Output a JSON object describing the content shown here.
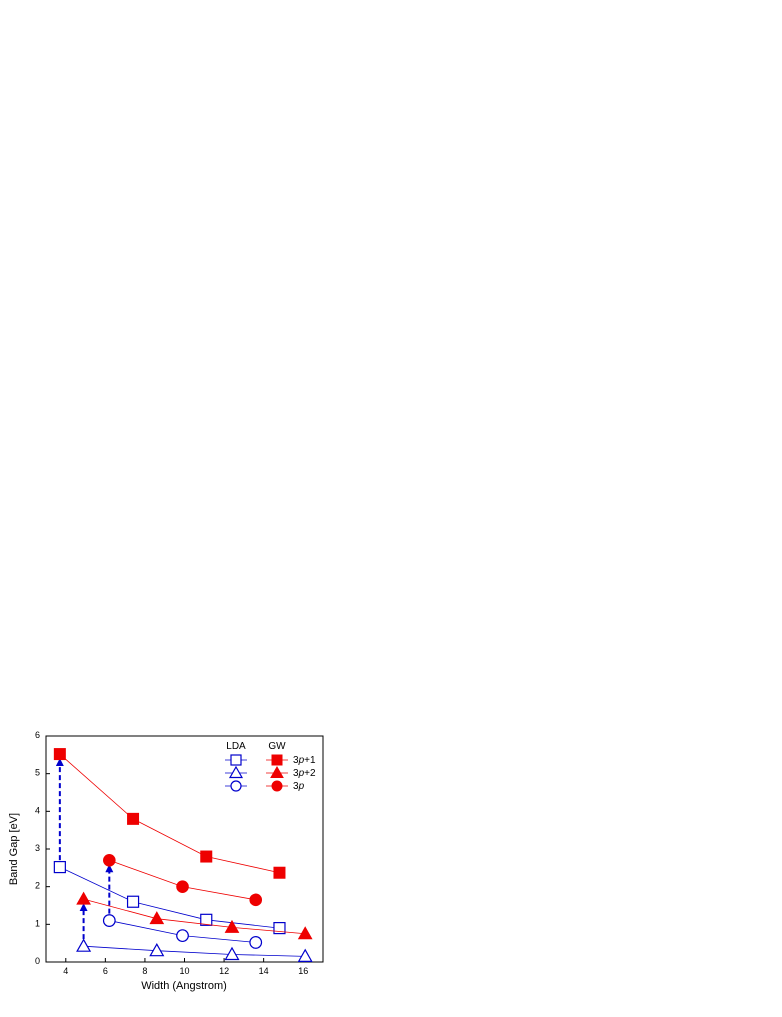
{
  "chart_data": {
    "type": "line",
    "x_label": "Width (Angstrom)",
    "y_label": "Band Gap [eV]",
    "xlim": [
      3,
      17
    ],
    "ylim": [
      0,
      6
    ],
    "xticks": [
      4,
      6,
      8,
      10,
      12,
      14,
      16
    ],
    "yticks": [
      0,
      1,
      2,
      3,
      4,
      5,
      6
    ],
    "legend_rows": [
      "3p+1",
      "3p+2",
      "3p"
    ],
    "groups": [
      {
        "name": "LDA",
        "color": "#0000cc",
        "filled": false,
        "series": [
          {
            "marker": "square",
            "x": [
              3.7,
              7.4,
              11.1,
              14.8
            ],
            "values": [
              2.52,
              1.6,
              1.12,
              0.9
            ]
          },
          {
            "marker": "triangle",
            "x": [
              4.9,
              8.6,
              12.4,
              16.1
            ],
            "values": [
              0.42,
              0.3,
              0.2,
              0.15
            ]
          },
          {
            "marker": "circle",
            "x": [
              6.2,
              9.9,
              13.6
            ],
            "values": [
              1.1,
              0.7,
              0.52
            ]
          }
        ]
      },
      {
        "name": "GW",
        "color": "#ee0000",
        "filled": true,
        "series": [
          {
            "marker": "square",
            "x": [
              3.7,
              7.4,
              11.1,
              14.8
            ],
            "values": [
              5.52,
              3.8,
              2.8,
              2.37
            ]
          },
          {
            "marker": "triangle",
            "x": [
              4.9,
              8.6,
              12.4,
              16.1
            ],
            "values": [
              1.67,
              1.15,
              0.92,
              0.75
            ]
          },
          {
            "marker": "circle",
            "x": [
              6.2,
              9.9,
              13.6
            ],
            "values": [
              2.7,
              2.0,
              1.65
            ]
          }
        ]
      }
    ]
  }
}
